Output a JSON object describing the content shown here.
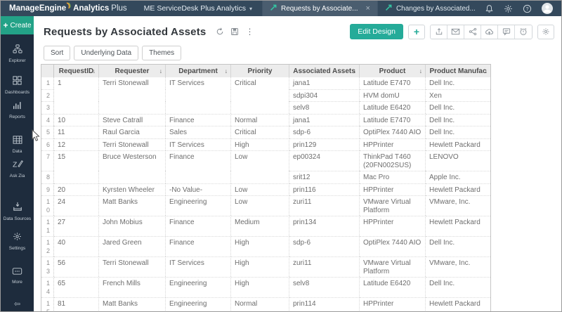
{
  "topbar": {
    "brand": {
      "part1": "ManageEngine",
      "part2": "Analytics",
      "part3": "Plus"
    },
    "workspace": "ME ServiceDesk Plus Analytics",
    "tabs": [
      {
        "label": "Requests by Associate...",
        "active": true,
        "closable": true
      },
      {
        "label": "Changes by Associated...",
        "active": false,
        "closable": false
      }
    ]
  },
  "sidebar": {
    "create_label": "Create",
    "items": [
      {
        "label": "Explorer",
        "icon": "explorer-icon"
      },
      {
        "label": "Dashboards",
        "icon": "dashboards-icon"
      },
      {
        "label": "Reports",
        "icon": "reports-icon"
      },
      {
        "label": "Data",
        "icon": "data-icon"
      },
      {
        "label": "Ask Zia",
        "icon": "ask-zia-icon"
      },
      {
        "label": "Data Sources",
        "icon": "data-sources-icon"
      },
      {
        "label": "Settings",
        "icon": "settings-icon"
      },
      {
        "label": "More",
        "icon": "more-icon"
      }
    ]
  },
  "report": {
    "title": "Requests by Associated Assets",
    "edit_design_label": "Edit Design",
    "filter_buttons": [
      "Sort",
      "Underlying Data",
      "Themes"
    ]
  },
  "table": {
    "columns": [
      {
        "label": "RequestID",
        "sortable": true
      },
      {
        "label": "Requester",
        "sortable": true
      },
      {
        "label": "Department",
        "sortable": true
      },
      {
        "label": "Priority",
        "sortable": false
      },
      {
        "label": "Associated Assets",
        "sortable": true
      },
      {
        "label": "Product",
        "sortable": true
      },
      {
        "label": "Product Manufac",
        "sortable": true
      }
    ],
    "rows": [
      {
        "n": "1",
        "id": "1",
        "requester": "Terri Stonewall",
        "department": "IT Services",
        "priority": "Critical",
        "asset": "jana1",
        "product": "Latitude E7470",
        "manufacturer": "Dell Inc.",
        "cont": false
      },
      {
        "n": "2",
        "id": "",
        "requester": "",
        "department": "",
        "priority": "",
        "asset": "sdpi304",
        "product": "HVM domU",
        "manufacturer": "Xen",
        "cont": true
      },
      {
        "n": "3",
        "id": "",
        "requester": "",
        "department": "",
        "priority": "",
        "asset": "selv8",
        "product": "Latitude E6420",
        "manufacturer": "Dell Inc.",
        "cont": true
      },
      {
        "n": "4",
        "id": "10",
        "requester": "Steve Catrall",
        "department": "Finance",
        "priority": "Normal",
        "asset": "jana1",
        "product": "Latitude E7470",
        "manufacturer": "Dell Inc.",
        "cont": false
      },
      {
        "n": "5",
        "id": "11",
        "requester": "Raul Garcia",
        "department": "Sales",
        "priority": "Critical",
        "asset": "sdp-6",
        "product": "OptiPlex 7440 AIO",
        "manufacturer": "Dell Inc.",
        "cont": false
      },
      {
        "n": "6",
        "id": "12",
        "requester": "Terri Stonewall",
        "department": "IT Services",
        "priority": "High",
        "asset": "prin129",
        "product": "HPPrinter",
        "manufacturer": "Hewlett Packard",
        "cont": false
      },
      {
        "n": "7",
        "id": "15",
        "requester": "Bruce Westerson",
        "department": "Finance",
        "priority": "Low",
        "asset": "ep00324",
        "product": "ThinkPad T460 (20FN002SUS)",
        "manufacturer": "LENOVO",
        "cont": false
      },
      {
        "n": "8",
        "id": "",
        "requester": "",
        "department": "",
        "priority": "",
        "asset": "srit12",
        "product": "Mac Pro",
        "manufacturer": "Apple Inc.",
        "cont": true
      },
      {
        "n": "9",
        "id": "20",
        "requester": "Kyrsten Wheeler",
        "department": "-No Value-",
        "priority": "Low",
        "asset": "prin116",
        "product": "HPPrinter",
        "manufacturer": "Hewlett Packard",
        "cont": false
      },
      {
        "n": "10",
        "id": "24",
        "requester": "Matt Banks",
        "department": "Engineering",
        "priority": "Low",
        "asset": "zuri11",
        "product": "VMware Virtual Platform",
        "manufacturer": "VMware, Inc.",
        "cont": false
      },
      {
        "n": "11",
        "id": "27",
        "requester": "John Mobius",
        "department": "Finance",
        "priority": "Medium",
        "asset": "prin134",
        "product": "HPPrinter",
        "manufacturer": "Hewlett Packard",
        "cont": false
      },
      {
        "n": "12",
        "id": "40",
        "requester": "Jared Green",
        "department": "Finance",
        "priority": "High",
        "asset": "sdp-6",
        "product": "OptiPlex 7440 AIO",
        "manufacturer": "Dell Inc.",
        "cont": false
      },
      {
        "n": "13",
        "id": "56",
        "requester": "Terri Stonewall",
        "department": "IT Services",
        "priority": "High",
        "asset": "zuri11",
        "product": "VMware Virtual Platform",
        "manufacturer": "VMware, Inc.",
        "cont": false
      },
      {
        "n": "14",
        "id": "65",
        "requester": "French Mills",
        "department": "Engineering",
        "priority": "High",
        "asset": "selv8",
        "product": "Latitude E6420",
        "manufacturer": "Dell Inc.",
        "cont": false
      },
      {
        "n": "15",
        "id": "81",
        "requester": "Matt Banks",
        "department": "Engineering",
        "priority": "Normal",
        "asset": "prin114",
        "product": "HPPrinter",
        "manufacturer": "Hewlett Packard",
        "cont": false
      }
    ]
  },
  "colors": {
    "topbar": "#34495c",
    "active_tab": "#4a5d6f",
    "sidebar": "#1e2c3d",
    "accent_teal": "#25ab99",
    "create_teal": "#23a287",
    "table_header_bg": "#ececec"
  }
}
